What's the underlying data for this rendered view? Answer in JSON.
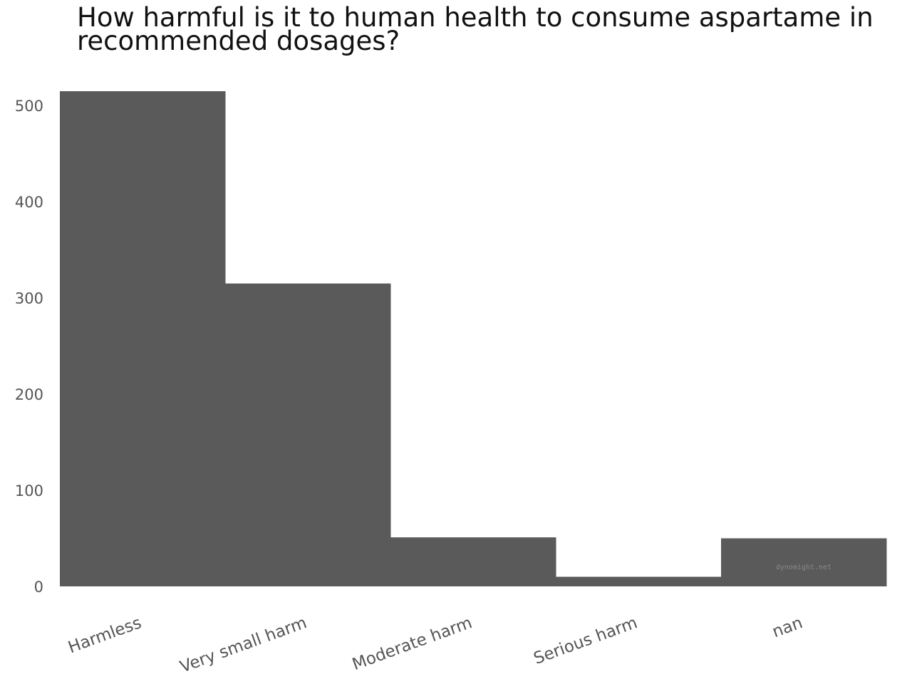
{
  "chart_data": {
    "type": "bar",
    "title": "How harmful is it to human health to consume aspartame in recommended dosages?",
    "categories": [
      "Harmless",
      "Very small harm",
      "Moderate harm",
      "Serious harm",
      "nan"
    ],
    "values": [
      515,
      315,
      51,
      10,
      50
    ],
    "xlabel": "",
    "ylabel": "",
    "ylim": [
      0,
      515
    ],
    "yticks": [
      0,
      100,
      200,
      300,
      400,
      500
    ],
    "grid": false,
    "legend": "none",
    "bar_color": "#5a5a5a",
    "watermark": "dynomight.net"
  }
}
